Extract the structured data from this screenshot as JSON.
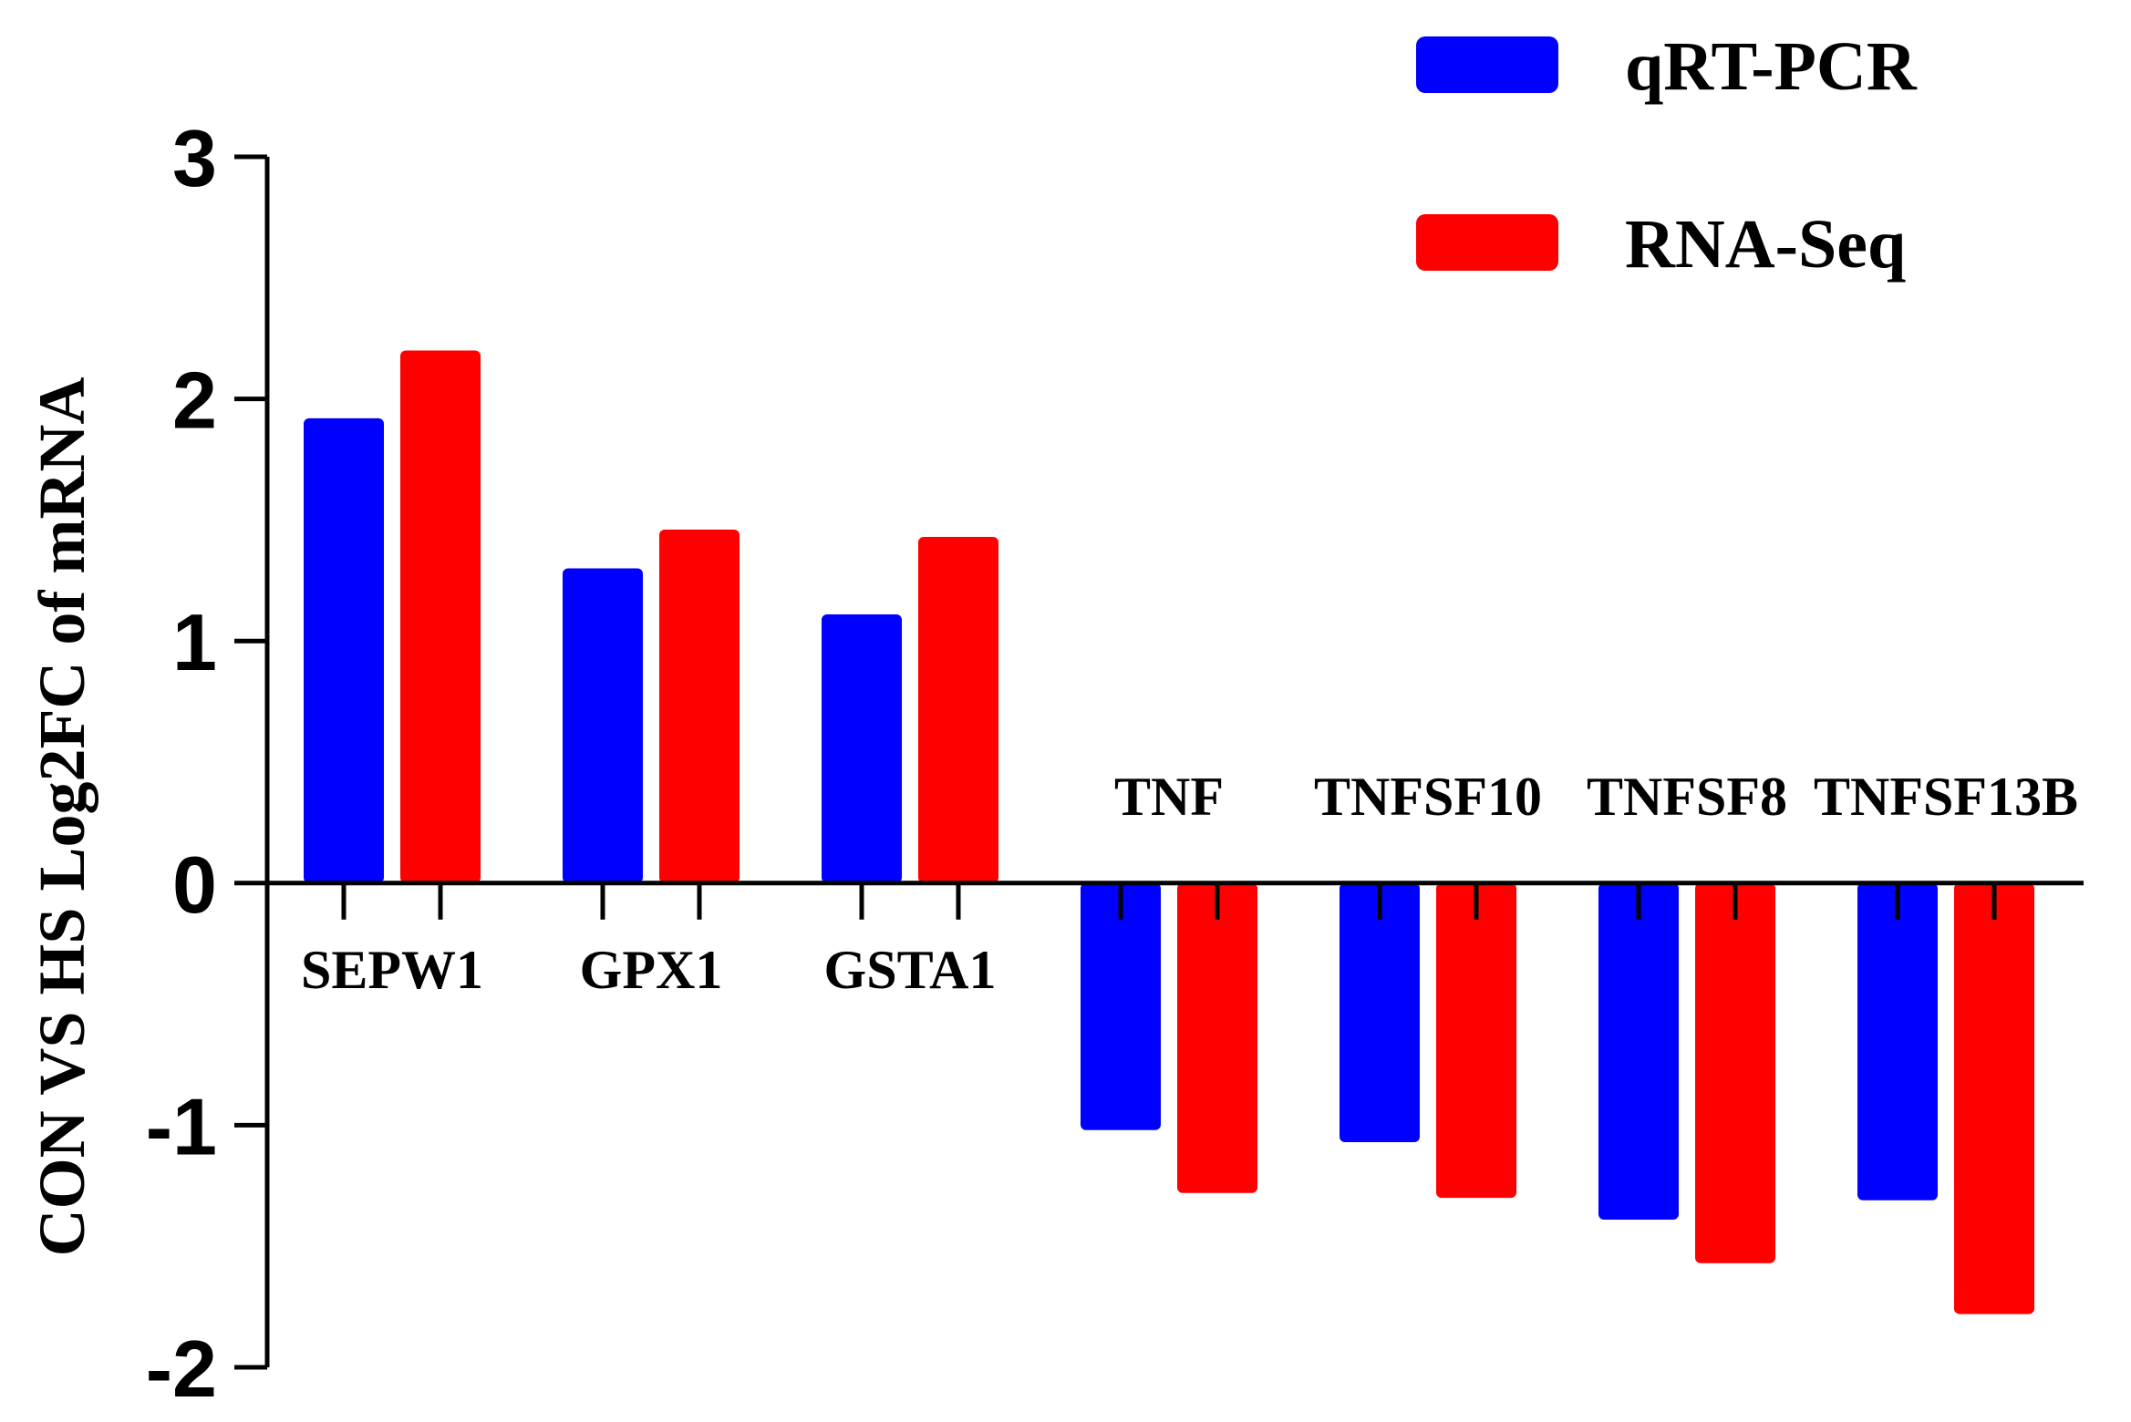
{
  "chart_data": {
    "type": "bar",
    "title": "",
    "xlabel": "",
    "ylabel": "CON VS HS Log2FC of mRNA",
    "ylim": [
      -2,
      3
    ],
    "yticks": [
      "3",
      "2",
      "1",
      "0",
      "-1",
      "-2"
    ],
    "categories": [
      "SEPW1",
      "GPX1",
      "GSTA1",
      "TNF",
      "TNFSF10",
      "TNFSF8",
      "TNFSF13B"
    ],
    "series": [
      {
        "name": "qRT-PCR",
        "color": "#0000ff",
        "values": [
          1.92,
          1.3,
          1.11,
          -1.02,
          -1.07,
          -1.39,
          -1.31
        ]
      },
      {
        "name": "RNA-Seq",
        "color": "#ff0000",
        "values": [
          2.2,
          1.46,
          1.43,
          -1.28,
          -1.3,
          -1.57,
          -1.78
        ]
      }
    ],
    "legend": {
      "position": "top-right"
    },
    "grid": false
  }
}
